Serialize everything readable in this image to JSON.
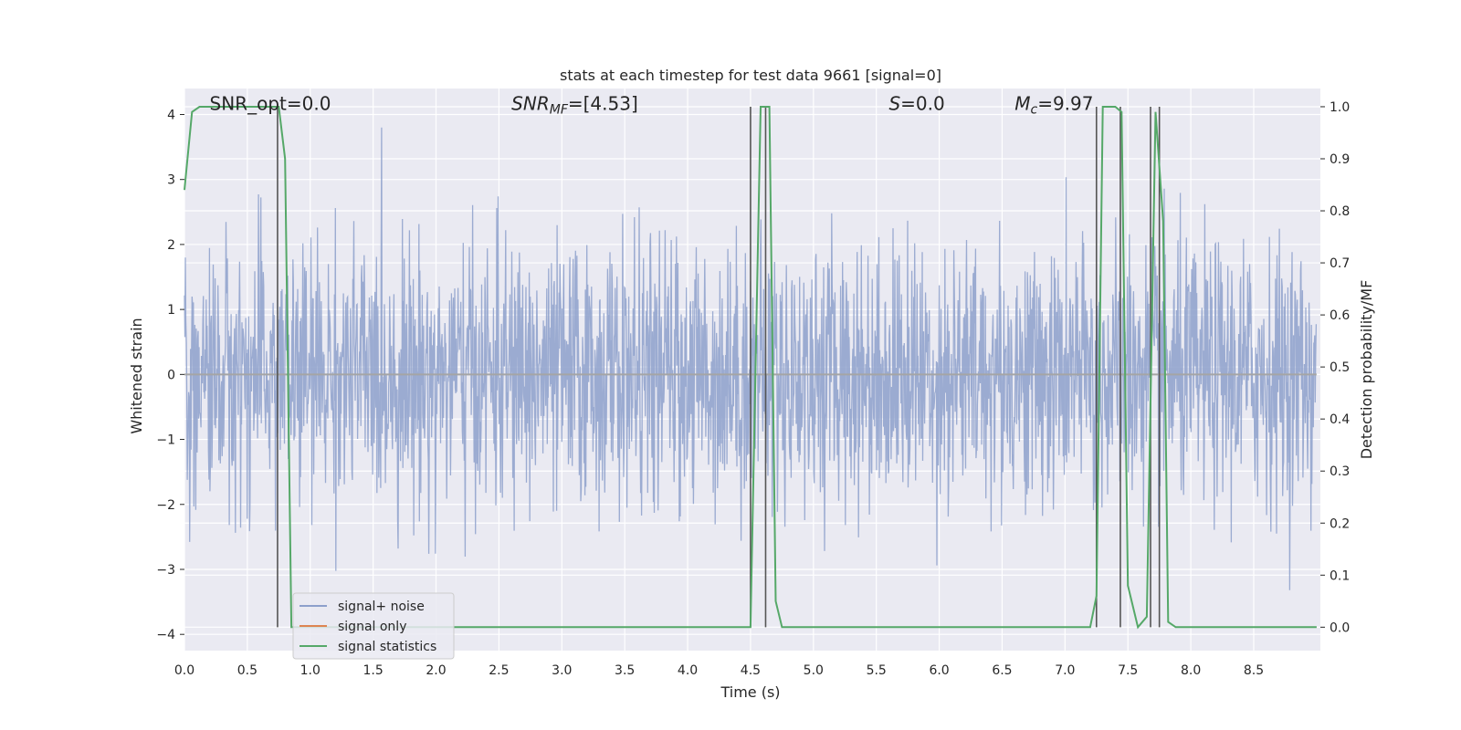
{
  "chart_data": {
    "type": "line",
    "title": "stats at each timestep for test data 9661 [signal=0]",
    "xlabel": "Time (s)",
    "ylabel": "Whitened strain",
    "y2label": "Detection probability/MF",
    "xlim": [
      0.0,
      9.0
    ],
    "ylim": [
      -4.25,
      4.4
    ],
    "y2lim": [
      -0.045,
      1.035
    ],
    "xticks": [
      "0.0",
      "0.5",
      "1.0",
      "1.5",
      "2.0",
      "2.5",
      "3.0",
      "3.5",
      "4.0",
      "4.5",
      "5.0",
      "5.5",
      "6.0",
      "6.5",
      "7.0",
      "7.5",
      "8.0",
      "8.5"
    ],
    "yticks": [
      "4",
      "3",
      "2",
      "1",
      "0",
      "−1",
      "−2",
      "−3",
      "−4"
    ],
    "y2ticks": [
      "1.0",
      "0.9",
      "0.8",
      "0.7",
      "0.6",
      "0.5",
      "0.4",
      "0.3",
      "0.2",
      "0.1",
      "0.0"
    ],
    "grid": true,
    "legend_position": "lower-left",
    "annotations": [
      {
        "label": "SNR_opt=0.0",
        "x": 0.2,
        "y": 4.1
      },
      {
        "label": "SNR",
        "sub": "MF",
        "rest": "=[4.53]",
        "x": 2.6,
        "y": 4.1
      },
      {
        "label": "S",
        "rest": "=0.0",
        "x": 5.6,
        "y": 4.1
      },
      {
        "label": "M",
        "sub": "c",
        "rest": "=9.97",
        "x": 6.6,
        "y": 4.1
      }
    ],
    "series": [
      {
        "name": "signal+ noise",
        "color": "#8da0cb",
        "axis": "left",
        "description_stats": {
          "sigma": 1.0,
          "peak_max": 3.8,
          "peak_min": -4.0
        }
      },
      {
        "name": "signal only",
        "color": "#dd8452",
        "axis": "left",
        "values_constant": 0.0
      },
      {
        "name": "signal statistics",
        "color": "#55a868",
        "axis": "right",
        "x": [
          0.0,
          0.06,
          0.12,
          0.2,
          0.4,
          0.6,
          0.75,
          0.8,
          0.85,
          0.9,
          4.45,
          4.5,
          4.58,
          4.65,
          4.7,
          4.75,
          7.2,
          7.25,
          7.3,
          7.4,
          7.45,
          7.5,
          7.58,
          7.65,
          7.72,
          7.78,
          7.82,
          7.88,
          7.95,
          9.0
        ],
        "values": [
          0.84,
          0.99,
          1.0,
          1.0,
          1.0,
          1.0,
          1.0,
          0.9,
          0.0,
          0.0,
          0.0,
          0.0,
          1.0,
          1.0,
          0.05,
          0.0,
          0.0,
          0.06,
          1.0,
          1.0,
          0.99,
          0.08,
          0.0,
          0.02,
          0.99,
          0.78,
          0.01,
          0.0,
          0.0,
          0.0
        ]
      }
    ],
    "event_markers": {
      "color": "#555555",
      "x": [
        0.74,
        4.5,
        4.62,
        7.25,
        7.44,
        7.68,
        7.75
      ],
      "y2_range": [
        0.0,
        1.0
      ]
    }
  }
}
